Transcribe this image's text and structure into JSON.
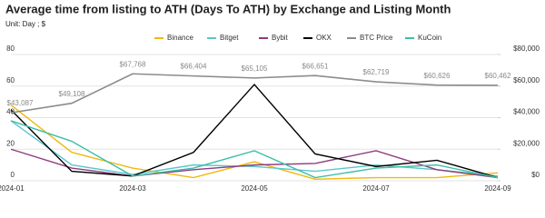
{
  "chart_data": {
    "type": "line",
    "title": "Average time from listing to ATH (Days To ATH) by Exchange and Listing Month",
    "subtitle": "Unit: Day ; $",
    "categories": [
      "2024-01",
      null,
      "2024-03",
      null,
      "2024-05",
      null,
      "2024-07",
      null,
      "2024-09"
    ],
    "ylim": [
      0,
      80
    ],
    "yticks": [
      0,
      20,
      40,
      60,
      80
    ],
    "y2lim": [
      0,
      80000
    ],
    "y2ticks": [
      {
        "value": 0,
        "label": "$0"
      },
      {
        "value": 20000,
        "label": "$20,000"
      },
      {
        "value": 40000,
        "label": "$40,000"
      },
      {
        "value": 60000,
        "label": "$60,000"
      },
      {
        "value": 80000,
        "label": "$80,000"
      }
    ],
    "grid": true,
    "legend": "top",
    "series": [
      {
        "name": "Binance",
        "color": "#f0b90b",
        "values": [
          48,
          18,
          8,
          2,
          12,
          1,
          2,
          2,
          5
        ]
      },
      {
        "name": "Bitget",
        "color": "#5cc6cc",
        "values": [
          38,
          10,
          4,
          10,
          9,
          6,
          10,
          7,
          3
        ]
      },
      {
        "name": "Bybit",
        "color": "#8e3b7e",
        "values": [
          20,
          8,
          3,
          7,
          10,
          11,
          19,
          7,
          2
        ]
      },
      {
        "name": "OKX",
        "color": "#000000",
        "values": [
          45,
          6,
          3,
          18,
          61,
          17,
          9,
          13,
          2
        ]
      },
      {
        "name": "BTC Price",
        "color": "#8c8c8c",
        "axis": "y2",
        "values": [
          43087,
          49108,
          67768,
          66404,
          65105,
          66651,
          62719,
          60626,
          60462
        ],
        "value_labels": [
          "$43,087",
          "$49,108",
          "$67,768",
          "$66,404",
          "$65,105",
          "$66,651",
          "$62,719",
          "$60,626",
          "$60,462"
        ]
      },
      {
        "name": "KuCoin",
        "color": "#3cbfa5",
        "values": [
          38,
          25,
          3,
          8,
          19,
          2,
          8,
          10,
          2
        ]
      }
    ]
  }
}
